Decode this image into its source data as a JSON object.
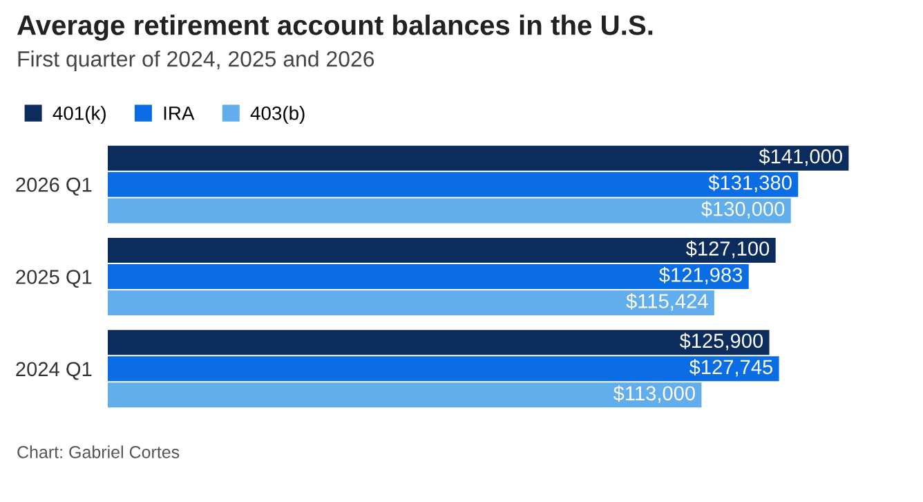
{
  "chart_data": {
    "type": "bar",
    "orientation": "horizontal",
    "title": "Average retirement account balances in the U.S.",
    "subtitle": "First quarter of 2024, 2025 and 2026",
    "categories": [
      "2026 Q1",
      "2025 Q1",
      "2024 Q1"
    ],
    "series": [
      {
        "name": "401(k)",
        "color": "#0b2c5c",
        "values": [
          141000,
          127100,
          125900
        ],
        "value_labels": [
          "$141,000",
          "$127,100",
          "$125,900"
        ]
      },
      {
        "name": "IRA",
        "color": "#0a6de4",
        "values": [
          131380,
          121983,
          127745
        ],
        "value_labels": [
          "$131,380",
          "$121,983",
          "$127,745"
        ]
      },
      {
        "name": "403(b)",
        "color": "#62aeec",
        "values": [
          130000,
          115424,
          113000
        ],
        "value_labels": [
          "$130,000",
          "$115,424",
          "$113,000"
        ]
      }
    ],
    "legend": "top left",
    "grid": false,
    "annotations": [
      "Chart: Gabriel Cortes"
    ]
  }
}
